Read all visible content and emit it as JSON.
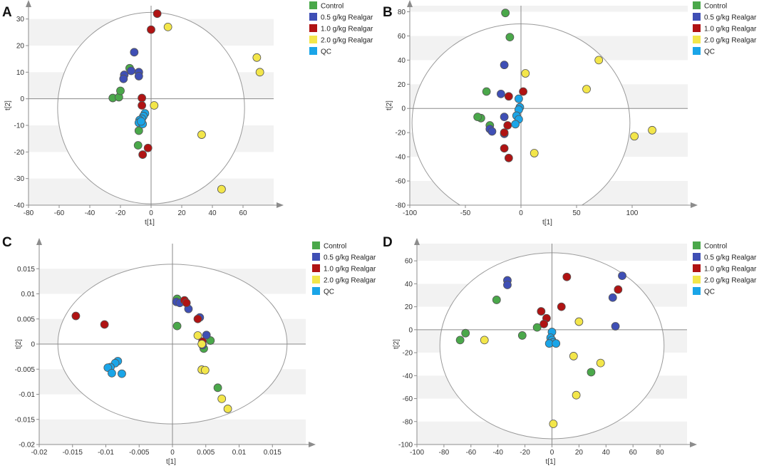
{
  "figure": {
    "panels": [
      {
        "panel_label": "A",
        "chart_data": {
          "type": "scatter",
          "xlabel": "t[1]",
          "ylabel": "t[2]",
          "xlim": [
            -80,
            80
          ],
          "ylim": [
            -40,
            35
          ],
          "xticks": [
            -80,
            -60,
            -40,
            -20,
            0,
            20,
            40,
            60
          ],
          "yticks": [
            -40,
            -30,
            -20,
            -10,
            0,
            10,
            20,
            30
          ],
          "xtick_labels": [
            "-80",
            "-60",
            "-40",
            "-20",
            "0",
            "20",
            "40",
            "60"
          ],
          "ytick_labels": [
            "-40",
            "-30",
            "-20",
            "-10",
            "0",
            "10",
            "20",
            "30"
          ],
          "ellipse": {
            "cx": 0,
            "cy": -3.5,
            "rx": 61,
            "ry": 36
          },
          "series": [
            {
              "name": "Control",
              "color": "#4aa84a",
              "points": [
                [
                  -25,
                  0.3
                ],
                [
                  -21,
                  0.6
                ],
                [
                  -20,
                  3
                ],
                [
                  -14,
                  11.5
                ],
                [
                  -8,
                  -12
                ],
                [
                  -8.5,
                  -17.5
                ]
              ]
            },
            {
              "name": "0.5 g/kg Realgar",
              "color": "#3f4fb5",
              "points": [
                [
                  -11,
                  17.5
                ],
                [
                  -17.5,
                  9
                ],
                [
                  -18,
                  7.5
                ],
                [
                  -13,
                  10.5
                ],
                [
                  -8,
                  10
                ],
                [
                  -8,
                  8.5
                ]
              ]
            },
            {
              "name": "1.0 g/kg Realgar",
              "color": "#b01313",
              "points": [
                [
                  4,
                  32
                ],
                [
                  0,
                  26
                ],
                [
                  -6,
                  0.3
                ],
                [
                  -6,
                  -2.5
                ],
                [
                  -2,
                  -18.5
                ],
                [
                  -5.5,
                  -21
                ]
              ]
            },
            {
              "name": "2.0 g/kg Realgar",
              "color": "#f3e64a",
              "points": [
                [
                  11,
                  27
                ],
                [
                  69,
                  15.5
                ],
                [
                  71,
                  10
                ],
                [
                  2,
                  -2.5
                ],
                [
                  33,
                  -13.5
                ],
                [
                  46,
                  -34
                ]
              ]
            },
            {
              "name": "QC",
              "color": "#1aa5e8",
              "points": [
                [
                  -4,
                  -5.5
                ],
                [
                  -5,
                  -6.5
                ],
                [
                  -6,
                  -7.5
                ],
                [
                  -7.5,
                  -8
                ],
                [
                  -8,
                  -9
                ],
                [
                  -5.5,
                  -9.5
                ],
                [
                  -6.5,
                  -8.5
                ]
              ]
            }
          ]
        }
      },
      {
        "panel_label": "B",
        "chart_data": {
          "type": "scatter",
          "xlabel": "t[1]",
          "ylabel": "t[2]",
          "xlim": [
            -100,
            150
          ],
          "ylim": [
            -80,
            85
          ],
          "xticks": [
            -100,
            -50,
            0,
            50,
            100
          ],
          "yticks": [
            -80,
            -60,
            -40,
            -20,
            0,
            20,
            40,
            60,
            80
          ],
          "xtick_labels": [
            "-100",
            "-50",
            "0",
            "50",
            "100"
          ],
          "ytick_labels": [
            "-80",
            "-60",
            "-40",
            "-20",
            "0",
            "20",
            "40",
            "60",
            "80"
          ],
          "ellipse": {
            "cx": 0,
            "cy": -12,
            "rx": 98,
            "ry": 82
          },
          "series": [
            {
              "name": "Control",
              "color": "#4aa84a",
              "points": [
                [
                  -14,
                  79
                ],
                [
                  -10,
                  59
                ],
                [
                  -31,
                  14
                ],
                [
                  -36,
                  -8
                ],
                [
                  -39,
                  -7
                ],
                [
                  -28,
                  -14
                ]
              ]
            },
            {
              "name": "0.5 g/kg Realgar",
              "color": "#3f4fb5",
              "points": [
                [
                  -15,
                  36
                ],
                [
                  -18,
                  12
                ],
                [
                  -28,
                  -17
                ],
                [
                  -26,
                  -19
                ],
                [
                  -15,
                  -7
                ],
                [
                  -15,
                  -21
                ]
              ]
            },
            {
              "name": "1.0 g/kg Realgar",
              "color": "#b01313",
              "points": [
                [
                  2,
                  14
                ],
                [
                  -11,
                  10
                ],
                [
                  -12,
                  -14
                ],
                [
                  -15,
                  -20
                ],
                [
                  -15,
                  -33
                ],
                [
                  -11,
                  -41
                ]
              ]
            },
            {
              "name": "2.0 g/kg Realgar",
              "color": "#f3e64a",
              "points": [
                [
                  70,
                  40
                ],
                [
                  59,
                  16
                ],
                [
                  4,
                  29
                ],
                [
                  12,
                  -37
                ],
                [
                  118,
                  -18
                ],
                [
                  102,
                  -23
                ]
              ]
            },
            {
              "name": "QC",
              "color": "#1aa5e8",
              "points": [
                [
                  -2,
                  8
                ],
                [
                  -1,
                  1
                ],
                [
                  -2,
                  -1
                ],
                [
                  -4,
                  -6
                ],
                [
                  -2,
                  -9
                ],
                [
                  -5,
                  -13
                ]
              ]
            }
          ]
        }
      },
      {
        "panel_label": "C",
        "chart_data": {
          "type": "scatter",
          "xlabel": "t[1]",
          "ylabel": "t[2]",
          "xlim": [
            -0.02,
            0.02
          ],
          "ylim": [
            -0.02,
            0.02
          ],
          "xticks": [
            -0.02,
            -0.015,
            -0.01,
            -0.005,
            0,
            0.005,
            0.01,
            0.015
          ],
          "yticks": [
            -0.02,
            -0.015,
            -0.01,
            -0.005,
            0,
            0.005,
            0.01,
            0.015
          ],
          "xtick_labels": [
            "-0.02",
            "-0.015",
            "-0.01",
            "-0.005",
            "0",
            "0.005",
            "0.01",
            "0.015"
          ],
          "ytick_labels": [
            "-0.02",
            "-0.015",
            "-0.01",
            "-0.005",
            "0",
            "0.005",
            "0.01",
            "0.015"
          ],
          "ellipse": {
            "cx": 0,
            "cy": 0,
            "rx": 0.0172,
            "ry": 0.0159
          },
          "series": [
            {
              "name": "Control",
              "color": "#4aa84a",
              "points": [
                [
                  0.0007,
                  0.009
                ],
                [
                  0.0007,
                  0.0036
                ],
                [
                  0.0057,
                  0.0007
                ],
                [
                  0.0047,
                  -0.0009
                ],
                [
                  0.0068,
                  -0.0087
                ]
              ]
            },
            {
              "name": "0.5 g/kg Realgar",
              "color": "#3f4fb5",
              "points": [
                [
                  0.0006,
                  0.0084
                ],
                [
                  0.0011,
                  0.0082
                ],
                [
                  0.0024,
                  0.007
                ],
                [
                  0.0041,
                  0.0053
                ],
                [
                  0.0051,
                  0.0018
                ],
                [
                  0.0045,
                  -0.0002
                ]
              ]
            },
            {
              "name": "1.0 g/kg Realgar",
              "color": "#b01313",
              "points": [
                [
                  -0.0145,
                  0.0056
                ],
                [
                  -0.0102,
                  0.0039
                ],
                [
                  0.0018,
                  0.0087
                ],
                [
                  0.0021,
                  0.0082
                ],
                [
                  0.0038,
                  0.005
                ],
                [
                  0.0045,
                  0.0005
                ]
              ]
            },
            {
              "name": "2.0 g/kg Realgar",
              "color": "#f3e64a",
              "points": [
                [
                  0.0038,
                  0.0017
                ],
                [
                  0.0044,
                  0
                ],
                [
                  0.0044,
                  -0.0051
                ],
                [
                  0.0049,
                  -0.0052
                ],
                [
                  0.0074,
                  -0.0109
                ],
                [
                  0.0083,
                  -0.0129
                ]
              ]
            },
            {
              "name": "QC",
              "color": "#1aa5e8",
              "points": [
                [
                  -0.0082,
                  -0.0034
                ],
                [
                  -0.0086,
                  -0.0038
                ],
                [
                  -0.0093,
                  -0.0046
                ],
                [
                  -0.0097,
                  -0.0047
                ],
                [
                  -0.0091,
                  -0.0058
                ],
                [
                  -0.0076,
                  -0.0059
                ]
              ]
            }
          ]
        }
      },
      {
        "panel_label": "D",
        "chart_data": {
          "type": "scatter",
          "xlabel": "t[1]",
          "ylabel": "t[2]",
          "xlim": [
            -100,
            100
          ],
          "ylim": [
            -100,
            75
          ],
          "xticks": [
            -100,
            -80,
            -60,
            -40,
            -20,
            0,
            20,
            40,
            60,
            80
          ],
          "yticks": [
            -100,
            -80,
            -60,
            -40,
            -20,
            0,
            20,
            40,
            60
          ],
          "xtick_labels": [
            "-100",
            "-80",
            "-60",
            "-40",
            "-20",
            "0",
            "20",
            "40",
            "60",
            "80"
          ],
          "ytick_labels": [
            "-100",
            "-80",
            "-60",
            "-40",
            "-20",
            "0",
            "20",
            "40",
            "60"
          ],
          "ellipse": {
            "cx": 0,
            "cy": -14,
            "rx": 83,
            "ry": 81
          },
          "series": [
            {
              "name": "Control",
              "color": "#4aa84a",
              "points": [
                [
                  -41,
                  26
                ],
                [
                  -68,
                  -9
                ],
                [
                  -64,
                  -3
                ],
                [
                  -11,
                  2
                ],
                [
                  -22,
                  -5
                ],
                [
                  29,
                  -37
                ]
              ]
            },
            {
              "name": "0.5 g/kg Realgar",
              "color": "#3f4fb5",
              "points": [
                [
                  -33,
                  43
                ],
                [
                  -33,
                  39
                ],
                [
                  52,
                  47
                ],
                [
                  45,
                  28
                ],
                [
                  47,
                  3
                ]
              ]
            },
            {
              "name": "1.0 g/kg Realgar",
              "color": "#b01313",
              "points": [
                [
                  11,
                  46
                ],
                [
                  49,
                  35
                ],
                [
                  7,
                  20
                ],
                [
                  -8,
                  16
                ],
                [
                  -4,
                  10
                ],
                [
                  -6,
                  5
                ]
              ]
            },
            {
              "name": "2.0 g/kg Realgar",
              "color": "#f3e64a",
              "points": [
                [
                  -50,
                  -9
                ],
                [
                  20,
                  7
                ],
                [
                  16,
                  -23
                ],
                [
                  36,
                  -29
                ],
                [
                  18,
                  -57
                ],
                [
                  1,
                  -82
                ]
              ]
            },
            {
              "name": "QC",
              "color": "#1aa5e8",
              "points": [
                [
                  0,
                  -2
                ],
                [
                  -1,
                  -7
                ],
                [
                  0,
                  -9
                ],
                [
                  1,
                  -11
                ],
                [
                  -2,
                  -12
                ],
                [
                  3,
                  -12
                ]
              ]
            }
          ]
        }
      }
    ]
  }
}
